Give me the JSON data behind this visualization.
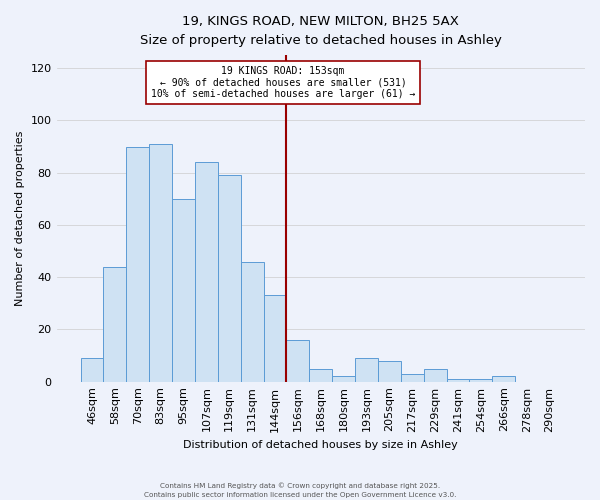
{
  "title": "19, KINGS ROAD, NEW MILTON, BH25 5AX",
  "subtitle": "Size of property relative to detached houses in Ashley",
  "xlabel": "Distribution of detached houses by size in Ashley",
  "ylabel": "Number of detached properties",
  "bar_labels": [
    "46sqm",
    "58sqm",
    "70sqm",
    "83sqm",
    "95sqm",
    "107sqm",
    "119sqm",
    "131sqm",
    "144sqm",
    "156sqm",
    "168sqm",
    "180sqm",
    "193sqm",
    "205sqm",
    "217sqm",
    "229sqm",
    "241sqm",
    "254sqm",
    "266sqm",
    "278sqm",
    "290sqm"
  ],
  "bar_heights": [
    9,
    44,
    90,
    91,
    70,
    84,
    79,
    46,
    33,
    16,
    5,
    2,
    9,
    8,
    3,
    5,
    1,
    1,
    2,
    0,
    0
  ],
  "bar_color": "#cfe2f3",
  "bar_edge_color": "#5b9bd5",
  "vline_x": 8.5,
  "property_label": "19 KINGS ROAD: 153sqm",
  "annotation_line1": "← 90% of detached houses are smaller (531)",
  "annotation_line2": "10% of semi-detached houses are larger (61) →",
  "vline_color": "#990000",
  "background_color": "#eef2fb",
  "plot_bg_color": "#eef2fb",
  "grid_color": "#cccccc",
  "yticks": [
    0,
    20,
    40,
    60,
    80,
    100,
    120
  ],
  "ylim": [
    0,
    125
  ],
  "footer1": "Contains HM Land Registry data © Crown copyright and database right 2025.",
  "footer2": "Contains public sector information licensed under the Open Government Licence v3.0."
}
